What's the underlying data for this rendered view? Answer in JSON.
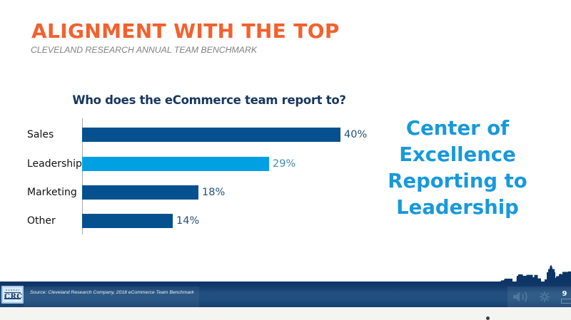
{
  "slide": {
    "title": "ALIGNMENT WITH THE TOP",
    "subtitle": "CLEVELAND RESEARCH ANNUAL TEAM BENCHMARK",
    "title_color": "#F2612E",
    "callout": {
      "text": "Center of Excellence Reporting to Leadership",
      "lines": [
        "Center of",
        "Excellence",
        "Reporting to",
        "Leadership"
      ],
      "color": "#1799DB"
    }
  },
  "chart_data": {
    "type": "bar",
    "orientation": "horizontal",
    "title": "Who does the eCommerce team report to?",
    "categories": [
      "Sales",
      "Leadership",
      "Marketing",
      "Other"
    ],
    "values": [
      40,
      29,
      18,
      14
    ],
    "value_labels": [
      "40%",
      "29%",
      "18%",
      "14%"
    ],
    "bar_colors": [
      "#05508F",
      "#00A0E3",
      "#05508F",
      "#05508F"
    ],
    "value_label_colors": [
      "#1F4E79",
      "#4489AE",
      "#1F4E79",
      "#1F4E79"
    ],
    "xlim": [
      0,
      40
    ],
    "grid": false,
    "legend": false,
    "xlabel": "",
    "ylabel": ""
  },
  "footer": {
    "logo_text": "CRC",
    "source_text": "Source: Cleveland Research Company, 2018 eCommerce Team Benchmark",
    "page_number": "9",
    "icons": [
      "volume-icon",
      "settings-gear-icon",
      "fit-page-icon"
    ]
  }
}
